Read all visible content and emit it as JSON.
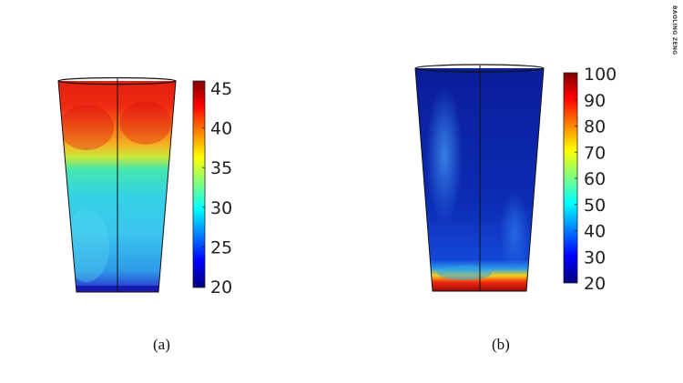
{
  "credit": "BAOLING ZENG",
  "panels": [
    {
      "caption": "(a)",
      "colorbar": {
        "ticks": [
          "45",
          "40",
          "35",
          "30",
          "25",
          "20"
        ],
        "min": 20,
        "max": 45
      }
    },
    {
      "caption": "(b)",
      "colorbar": {
        "ticks": [
          "100",
          "90",
          "80",
          "70",
          "60",
          "50",
          "40",
          "30",
          "20"
        ],
        "min": 20,
        "max": 100
      }
    }
  ],
  "colors": {
    "jet_dark_red": "#7f0000",
    "jet_red": "#ff0000",
    "jet_yellow": "#ffff00",
    "jet_cyan": "#00ffff",
    "jet_blue": "#0000ff",
    "jet_dark_blue": "#00007f"
  }
}
